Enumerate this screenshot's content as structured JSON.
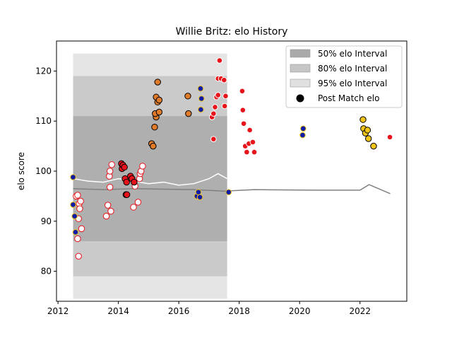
{
  "chart_data": {
    "type": "scatter",
    "title": "Willie Britz: elo History",
    "xlabel": "",
    "ylabel": "elo score",
    "xlim": [
      2011.95,
      2023.55
    ],
    "ylim": [
      74,
      126
    ],
    "x_ticks": [
      2012,
      2014,
      2016,
      2018,
      2020,
      2022
    ],
    "x_tick_labels": [
      "2012",
      "2014",
      "2016",
      "2018",
      "2020",
      "2022"
    ],
    "y_ticks": [
      80,
      90,
      100,
      110,
      120
    ],
    "y_tick_labels": [
      "80",
      "90",
      "100",
      "110",
      "120"
    ],
    "grid": false,
    "legend": {
      "position": "top-right",
      "entries": [
        {
          "label": "50% elo Interval",
          "swatch": "#aaaaaa"
        },
        {
          "label": "80% elo Interval",
          "swatch": "#c6c6c6"
        },
        {
          "label": "95% elo Interval",
          "swatch": "#e0e0e0"
        },
        {
          "label": "Post Match elo",
          "swatch": "#000000"
        }
      ]
    },
    "colors": {
      "band_50": "#aaaaaa",
      "band_80": "#c6c6c6",
      "band_95": "#e0e0e0",
      "mean_line": "#808080",
      "recent_line": "#ffffff",
      "red": "#e8141b",
      "orange": "#e07b2a",
      "gold": "#f0c419",
      "blue": "#0d1ba8",
      "white": "#ffffff"
    },
    "intervals": {
      "x": [
        2012.5,
        2017.6
      ],
      "band_95": [
        74.5,
        123.5
      ],
      "band_80": [
        79,
        119
      ],
      "band_50": [
        86,
        111
      ]
    },
    "mean_line": {
      "x": [
        2012.5,
        2013.5,
        2014.5,
        2015.5,
        2016.5,
        2017.5,
        2018.5,
        2020.5,
        2022.0,
        2022.3,
        2023.0
      ],
      "y": [
        96.5,
        96.3,
        96.5,
        96.4,
        96.3,
        96.0,
        96.3,
        96.2,
        96.2,
        97.3,
        95.5
      ]
    },
    "recent_line": {
      "x": [
        2012.5,
        2013.0,
        2013.5,
        2014.0,
        2014.5,
        2015.0,
        2015.5,
        2016.0,
        2016.5,
        2017.0,
        2017.3,
        2017.6
      ],
      "y": [
        98.5,
        98.0,
        97.8,
        98.5,
        98.0,
        97.5,
        97.8,
        97.2,
        97.5,
        98.5,
        99.5,
        98.5
      ]
    },
    "series": [
      {
        "style": "red-white",
        "points": [
          [
            2012.6,
            95
          ],
          [
            2012.65,
            95.2
          ],
          [
            2012.7,
            93.5
          ],
          [
            2012.75,
            94
          ],
          [
            2012.72,
            92.5
          ],
          [
            2012.78,
            88.5
          ],
          [
            2012.68,
            90.5
          ],
          [
            2012.65,
            86.5
          ],
          [
            2012.68,
            83
          ],
          [
            2013.6,
            91
          ],
          [
            2013.65,
            93.2
          ],
          [
            2013.75,
            92
          ],
          [
            2013.72,
            96.8
          ],
          [
            2013.7,
            99
          ],
          [
            2013.72,
            100
          ],
          [
            2013.78,
            101.3
          ],
          [
            2014.5,
            92.8
          ],
          [
            2014.55,
            97
          ],
          [
            2014.65,
            93.8
          ],
          [
            2014.7,
            98.5
          ],
          [
            2014.72,
            99.5
          ],
          [
            2014.75,
            100
          ],
          [
            2014.8,
            101
          ]
        ]
      },
      {
        "style": "red-black",
        "points": [
          [
            2014.1,
            101.5
          ],
          [
            2014.12,
            100.5
          ],
          [
            2014.15,
            101.2
          ],
          [
            2014.2,
            100.8
          ],
          [
            2014.22,
            98.5
          ],
          [
            2014.27,
            97.8
          ],
          [
            2014.25,
            95.3
          ],
          [
            2014.4,
            99
          ],
          [
            2014.45,
            98.5
          ],
          [
            2014.52,
            97.8
          ],
          [
            2014.28,
            95.3
          ]
        ]
      },
      {
        "style": "orange",
        "points": [
          [
            2015.1,
            105.5
          ],
          [
            2015.15,
            105
          ],
          [
            2015.2,
            108.8
          ],
          [
            2015.25,
            110.8
          ],
          [
            2015.22,
            111.5
          ],
          [
            2015.3,
            113.8
          ],
          [
            2015.25,
            114.8
          ],
          [
            2015.3,
            117.8
          ],
          [
            2015.35,
            111.8
          ],
          [
            2015.35,
            114.2
          ],
          [
            2016.3,
            115
          ],
          [
            2016.32,
            111.5
          ]
        ]
      },
      {
        "style": "red",
        "points": [
          [
            2017.1,
            110.8
          ],
          [
            2017.15,
            111.5
          ],
          [
            2017.2,
            112.8
          ],
          [
            2017.25,
            114.8
          ],
          [
            2017.3,
            118.5
          ],
          [
            2017.35,
            122.1
          ],
          [
            2017.4,
            118.5
          ],
          [
            2017.5,
            118.2
          ],
          [
            2017.55,
            115
          ],
          [
            2017.52,
            113
          ],
          [
            2017.15,
            106.4
          ],
          [
            2017.3,
            115.2
          ],
          [
            2018.1,
            116
          ],
          [
            2018.12,
            112.2
          ],
          [
            2018.15,
            109.5
          ],
          [
            2018.2,
            105
          ],
          [
            2018.25,
            103.8
          ],
          [
            2018.32,
            105.5
          ],
          [
            2018.35,
            108.2
          ],
          [
            2018.45,
            105.8
          ],
          [
            2018.5,
            103.8
          ],
          [
            2022.99,
            106.8
          ]
        ]
      },
      {
        "style": "blue-yellow",
        "points": [
          [
            2012.5,
            98.8
          ],
          [
            2012.5,
            93.3
          ],
          [
            2012.55,
            91
          ],
          [
            2012.58,
            87.8
          ],
          [
            2016.6,
            95
          ],
          [
            2016.65,
            95.8
          ],
          [
            2016.7,
            94.8
          ],
          [
            2016.75,
            114.5
          ],
          [
            2016.72,
            116.5
          ],
          [
            2016.73,
            112.3
          ],
          [
            2017.65,
            95.8
          ],
          [
            2020.12,
            108.5
          ],
          [
            2020.1,
            107.2
          ]
        ]
      },
      {
        "style": "gold",
        "points": [
          [
            2022.1,
            110.3
          ],
          [
            2022.12,
            108.5
          ],
          [
            2022.18,
            107.6
          ],
          [
            2022.25,
            108.2
          ],
          [
            2022.28,
            106.5
          ],
          [
            2022.45,
            105
          ]
        ]
      }
    ]
  }
}
